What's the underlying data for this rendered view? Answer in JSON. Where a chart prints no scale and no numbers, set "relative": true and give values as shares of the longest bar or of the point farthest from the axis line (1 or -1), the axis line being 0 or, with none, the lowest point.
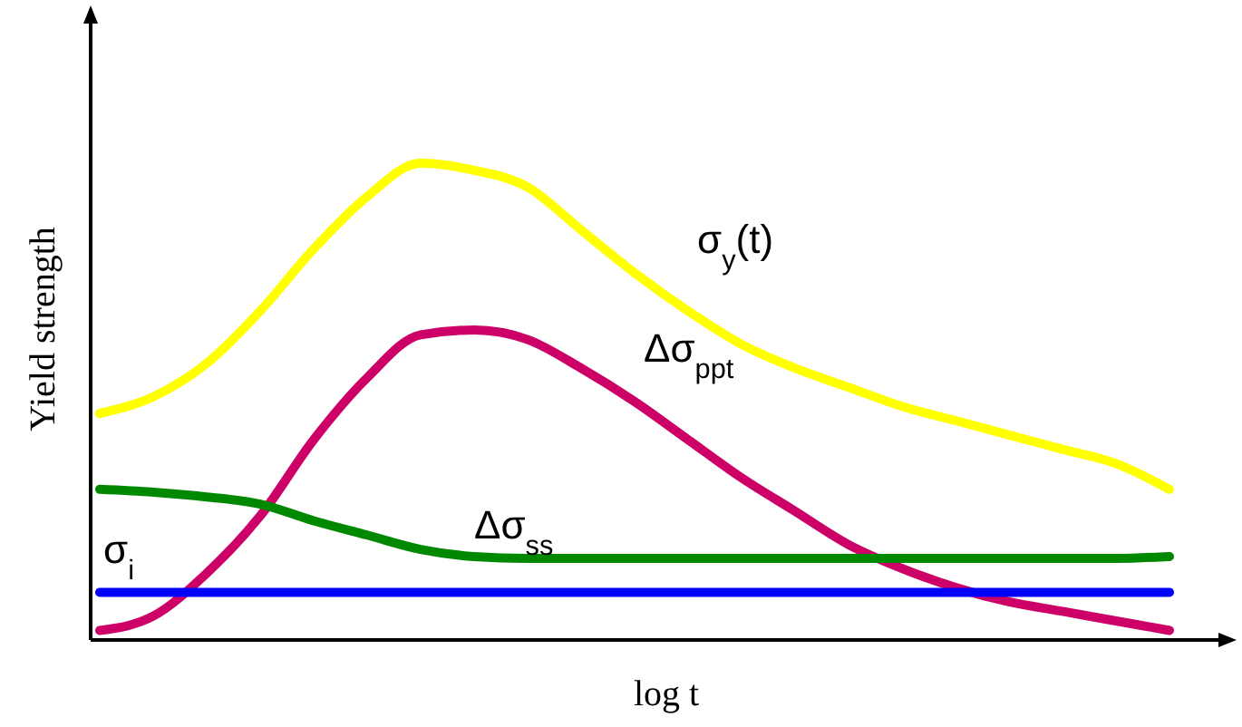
{
  "chart_data": {
    "type": "line",
    "relative": true,
    "xlabel": "log t",
    "ylabel": "Yield strength",
    "categories": [
      null,
      null,
      null,
      null,
      null,
      null,
      null,
      null,
      null,
      null,
      null,
      null,
      null,
      null,
      null,
      null,
      null,
      null,
      null,
      null,
      null
    ],
    "series": [
      {
        "name": "σ$_{y}$(t)",
        "color": "#ffff00",
        "values": [
          0.475,
          0.51,
          0.58,
          0.69,
          0.82,
          0.93,
          1,
          0.985,
          0.95,
          0.86,
          0.77,
          0.69,
          0.62,
          0.57,
          0.53,
          0.49,
          0.46,
          0.43,
          0.4,
          0.37,
          0.316
        ]
      },
      {
        "name": "Δσ$_{ppt}$",
        "color": "#cc0066",
        "values": [
          0.02,
          0.05,
          0.14,
          0.26,
          0.42,
          0.55,
          0.64,
          0.65,
          0.63,
          0.57,
          0.5,
          0.42,
          0.34,
          0.27,
          0.2,
          0.15,
          0.11,
          0.08,
          0.06,
          0.04,
          0.02
        ]
      },
      {
        "name": "Δσ$_{ss}$",
        "color": "#008800",
        "values": [
          0.316,
          0.31,
          0.3,
          0.285,
          0.25,
          0.22,
          0.19,
          0.175,
          0.171,
          0.171,
          0.171,
          0.171,
          0.171,
          0.171,
          0.171,
          0.171,
          0.171,
          0.171,
          0.171,
          0.171,
          0.175
        ]
      },
      {
        "name": "σ$_{i}$",
        "color": "#0000ff",
        "values": [
          0.1,
          0.1,
          0.1,
          0.1,
          0.1,
          0.1,
          0.1,
          0.1,
          0.1,
          0.1,
          0.1,
          0.1,
          0.1,
          0.1,
          0.1,
          0.1,
          0.1,
          0.1,
          0.1,
          0.1,
          0.1
        ]
      }
    ]
  }
}
